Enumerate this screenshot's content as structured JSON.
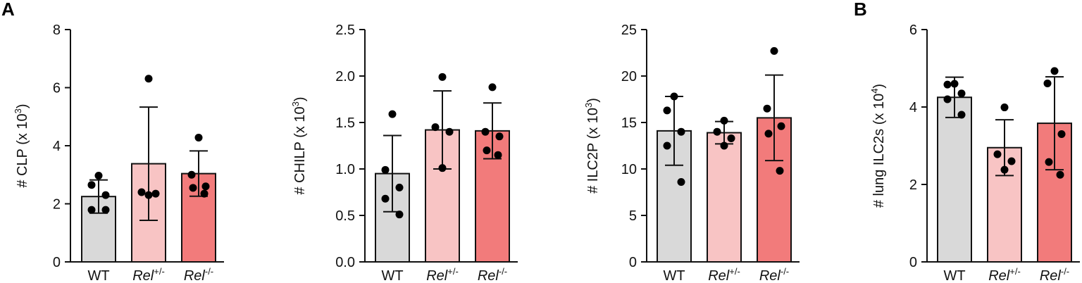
{
  "panel_labels": [
    "A",
    "B"
  ],
  "group_colors": [
    "#d9d9d9",
    "#f8c4c4",
    "#f27b7b"
  ],
  "chart_data": [
    {
      "type": "bar",
      "panel": "A",
      "ylabel": "# CLP (x 10³)",
      "ylabel_main": "# CLP (x 10",
      "ylabel_exp": "3",
      "ylabel_end": ")",
      "ylim": [
        0,
        8
      ],
      "yticks": [
        0,
        2,
        4,
        6,
        8
      ],
      "ytick_labels": [
        "0",
        "2",
        "4",
        "6",
        "8"
      ],
      "categories": [
        "WT",
        "Rel+/-",
        "Rel-/-"
      ],
      "category_labels": [
        {
          "base": "WT",
          "sup": ""
        },
        {
          "base": "Rel",
          "sup": "+/-"
        },
        {
          "base": "Rel",
          "sup": "-/-"
        }
      ],
      "means": [
        2.25,
        3.38,
        3.04
      ],
      "sd": [
        0.57,
        1.95,
        0.78
      ],
      "points": [
        [
          2.97,
          2.65,
          2.3,
          1.79,
          1.79
        ],
        [
          6.31,
          2.4,
          2.35,
          2.3
        ],
        [
          4.28,
          3.0,
          2.6,
          2.55,
          2.35
        ]
      ]
    },
    {
      "type": "bar",
      "panel": "A",
      "ylabel": "# CHILP (x 10³)",
      "ylabel_main": "# CHILP (x 10",
      "ylabel_exp": "3",
      "ylabel_end": ")",
      "ylim": [
        0,
        2.5
      ],
      "yticks": [
        0,
        0.5,
        1.0,
        1.5,
        2.0,
        2.5
      ],
      "ytick_labels": [
        "0.0",
        "0.5",
        "1.0",
        "1.5",
        "2.0",
        "2.5"
      ],
      "categories": [
        "WT",
        "Rel+/-",
        "Rel-/-"
      ],
      "category_labels": [
        {
          "base": "WT",
          "sup": ""
        },
        {
          "base": "Rel",
          "sup": "+/-"
        },
        {
          "base": "Rel",
          "sup": "-/-"
        }
      ],
      "means": [
        0.95,
        1.42,
        1.41
      ],
      "sd": [
        0.41,
        0.42,
        0.3
      ],
      "points": [
        [
          1.59,
          0.99,
          0.8,
          0.68,
          0.51
        ],
        [
          1.99,
          1.45,
          1.4,
          1.01
        ],
        [
          1.88,
          1.4,
          1.35,
          1.2,
          1.15
        ]
      ]
    },
    {
      "type": "bar",
      "panel": "A",
      "ylabel": "# ILC2P (x 10³)",
      "ylabel_main": "# ILC2P (x 10",
      "ylabel_exp": "3",
      "ylabel_end": ")",
      "ylim": [
        0,
        25
      ],
      "yticks": [
        0,
        5,
        10,
        15,
        20,
        25
      ],
      "ytick_labels": [
        "0",
        "5",
        "10",
        "15",
        "20",
        "25"
      ],
      "categories": [
        "WT",
        "Rel+/-",
        "Rel-/-"
      ],
      "category_labels": [
        {
          "base": "WT",
          "sup": ""
        },
        {
          "base": "Rel",
          "sup": "+/-"
        },
        {
          "base": "Rel",
          "sup": "-/-"
        }
      ],
      "means": [
        14.1,
        13.9,
        15.5
      ],
      "sd": [
        3.7,
        1.2,
        4.6
      ],
      "points": [
        [
          17.8,
          16.3,
          14.0,
          12.5,
          8.6
        ],
        [
          15.2,
          14.0,
          13.3,
          12.5
        ],
        [
          22.7,
          16.5,
          14.6,
          13.8,
          9.8
        ]
      ]
    },
    {
      "type": "bar",
      "panel": "B",
      "ylabel": "# lung ILC2s (x 10⁴)",
      "ylabel_main": "# lung ILC2s (x 10",
      "ylabel_exp": "4",
      "ylabel_end": ")",
      "ylim": [
        0,
        6
      ],
      "yticks": [
        0,
        2,
        4,
        6
      ],
      "ytick_labels": [
        "0",
        "2",
        "4",
        "6"
      ],
      "categories": [
        "WT",
        "Rel+/-",
        "Rel-/-"
      ],
      "category_labels": [
        {
          "base": "WT",
          "sup": ""
        },
        {
          "base": "Rel",
          "sup": "+/-"
        },
        {
          "base": "Rel",
          "sup": "-/-"
        }
      ],
      "means": [
        4.25,
        2.95,
        3.58
      ],
      "sd": [
        0.52,
        0.72,
        1.2
      ],
      "points": [
        [
          4.6,
          4.58,
          4.35,
          4.2,
          3.8
        ],
        [
          3.99,
          2.78,
          2.6,
          2.38
        ],
        [
          4.93,
          4.61,
          3.3,
          2.58,
          2.25
        ]
      ]
    }
  ]
}
